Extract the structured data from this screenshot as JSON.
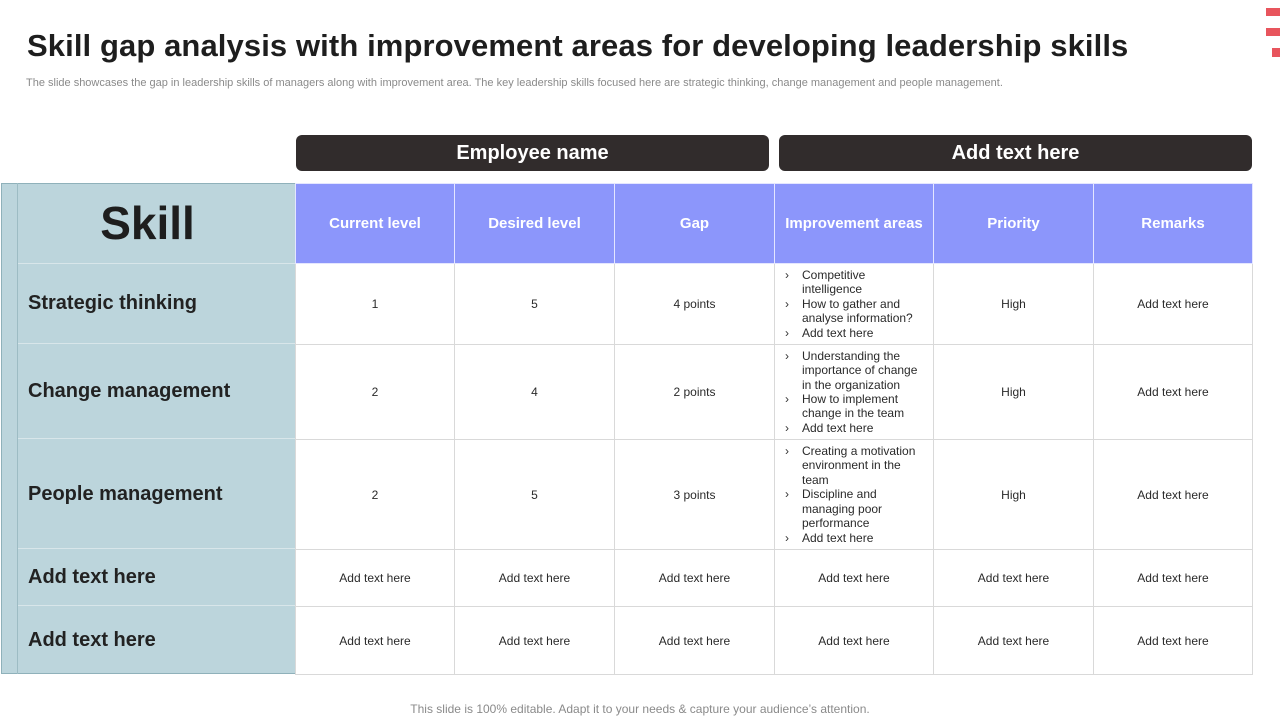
{
  "title": "Skill gap analysis with improvement areas for developing leadership skills",
  "subtitle": "The slide showcases the gap in leadership skills of managers along with improvement area. The key leadership skills focused here are strategic thinking, change management and people management.",
  "employee_bar_left": "Employee name",
  "employee_bar_right": "Add text here",
  "skill_heading": "Skill",
  "columns": [
    "Current level",
    "Desired level",
    "Gap",
    "Improvement areas",
    "Priority",
    "Remarks"
  ],
  "rows": [
    {
      "skill": "Strategic thinking",
      "current": "1",
      "desired": "5",
      "gap": "4 points",
      "improvement": [
        "Competitive intelligence",
        "How to gather and analyse information?",
        "Add text here"
      ],
      "priority": "High",
      "remarks": "Add text here"
    },
    {
      "skill": "Change management",
      "current": "2",
      "desired": "4",
      "gap": "2 points",
      "improvement": [
        "Understanding the importance of change in the organization",
        "How to implement change in the team",
        "Add text here"
      ],
      "priority": "High",
      "remarks": "Add text here"
    },
    {
      "skill": "People management",
      "current": "2",
      "desired": "5",
      "gap": "3 points",
      "improvement": [
        "Creating a motivation environment in the team",
        "Discipline and managing poor performance",
        "Add text here"
      ],
      "priority": "High",
      "remarks": "Add text here"
    },
    {
      "skill": "Add text here",
      "current": "Add text here",
      "desired": "Add text here",
      "gap": "Add text here",
      "improvement": "Add text here",
      "priority": "Add text here",
      "remarks": "Add text here"
    },
    {
      "skill": "Add text here",
      "current": "Add text here",
      "desired": "Add text here",
      "gap": "Add text here",
      "improvement": "Add text here",
      "priority": "Add text here",
      "remarks": "Add text here"
    }
  ],
  "footer": "This slide is 100% editable. Adapt it to your needs & capture your audience’s attention.",
  "colors": {
    "header_blue": "#8c96fb",
    "skill_panel": "#bcd5dc",
    "dark_bar": "#312c2c",
    "accent_red": "#e8555d"
  }
}
